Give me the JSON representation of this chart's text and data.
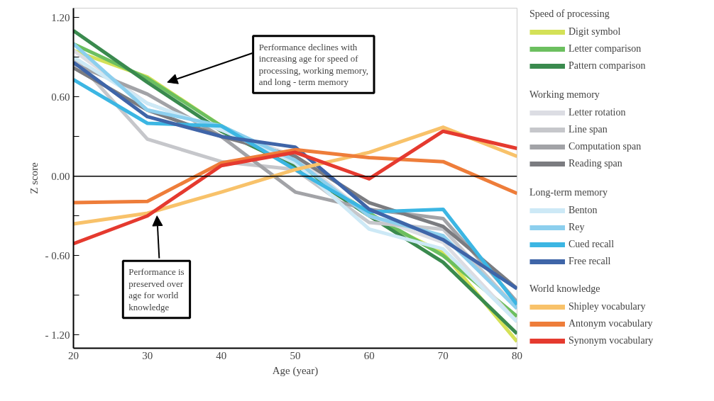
{
  "chart_data": {
    "type": "line",
    "xlabel": "Age (year)",
    "ylabel": "Z score",
    "x": [
      20,
      30,
      40,
      50,
      60,
      70,
      80
    ],
    "xlim": [
      20,
      80
    ],
    "xticks": [
      20,
      30,
      40,
      50,
      60,
      70,
      80
    ],
    "ylim": [
      -1.3,
      1.27
    ],
    "yticks": [
      {
        "value": 1.2,
        "label": "1.20"
      },
      {
        "value": 0.9,
        "label": null
      },
      {
        "value": 0.6,
        "label": "0.60"
      },
      {
        "value": 0.3,
        "label": null
      },
      {
        "value": 0,
        "label": "0.00"
      },
      {
        "value": -0.3,
        "label": null
      },
      {
        "value": -0.6,
        "label": "- 0.60"
      },
      {
        "value": -0.9,
        "label": null
      },
      {
        "value": -1.2,
        "label": "- 1.20"
      }
    ],
    "ref_lines": [
      {
        "axis": "y",
        "value": 0,
        "label": null,
        "color": "#000000"
      }
    ],
    "grid": false,
    "legend": "right",
    "legend_title": [
      "Speed of processing",
      "Working memory",
      "Long-term memory",
      "World knowledge"
    ],
    "series": [
      {
        "name": "Digit symbol",
        "color": "#d4e157",
        "values": [
          0.95,
          0.75,
          0.38,
          0.1,
          -0.3,
          -0.58,
          -1.25
        ]
      },
      {
        "name": "Letter comparison",
        "color": "#6cbf5f",
        "values": [
          1.0,
          0.74,
          0.38,
          0.1,
          -0.28,
          -0.6,
          -1.06
        ]
      },
      {
        "name": "Pattern comparison",
        "color": "#3a8a4e",
        "values": [
          1.1,
          0.71,
          0.34,
          0.07,
          -0.3,
          -0.65,
          -1.19
        ]
      },
      {
        "name": "Letter rotation",
        "color": "#dcdde3",
        "values": [
          0.95,
          0.55,
          0.35,
          0.15,
          -0.3,
          -0.5,
          -1.1
        ]
      },
      {
        "name": "Line span",
        "color": "#c6c7cb",
        "values": [
          0.9,
          0.28,
          0.11,
          0.05,
          -0.35,
          -0.4,
          -1.0
        ]
      },
      {
        "name": "Computation span",
        "color": "#a2a3a7",
        "values": [
          0.85,
          0.62,
          0.3,
          -0.12,
          -0.25,
          -0.32,
          -0.95
        ]
      },
      {
        "name": "Reading span",
        "color": "#7b7c80",
        "values": [
          0.82,
          0.5,
          0.3,
          0.15,
          -0.2,
          -0.38,
          -0.85
        ]
      },
      {
        "name": "Benton",
        "color": "#cde9f6",
        "values": [
          0.9,
          0.55,
          0.35,
          0.1,
          -0.4,
          -0.55,
          -1.1
        ]
      },
      {
        "name": "Rey",
        "color": "#8ccfee",
        "values": [
          1.0,
          0.5,
          0.38,
          0.12,
          -0.3,
          -0.45,
          -1.0
        ]
      },
      {
        "name": "Cued recall",
        "color": "#3cb6e3",
        "values": [
          0.73,
          0.4,
          0.38,
          0.05,
          -0.27,
          -0.25,
          -0.97
        ]
      },
      {
        "name": "Free recall",
        "color": "#3f65a8",
        "values": [
          0.86,
          0.45,
          0.3,
          0.22,
          -0.25,
          -0.48,
          -0.85
        ]
      },
      {
        "name": "Shipley vocabulary",
        "color": "#f8c26a",
        "values": [
          -0.36,
          -0.28,
          -0.12,
          0.05,
          0.18,
          0.37,
          0.15
        ]
      },
      {
        "name": "Antonym vocabulary",
        "color": "#ee7d3a",
        "values": [
          -0.2,
          -0.19,
          0.1,
          0.2,
          0.14,
          0.11,
          -0.13
        ]
      },
      {
        "name": "Synonym vocabulary",
        "color": "#e53a2f",
        "values": [
          -0.51,
          -0.3,
          0.08,
          0.18,
          -0.02,
          0.34,
          0.21
        ]
      }
    ],
    "annotations": [
      "Performance declines with increasing age for speed of processing, working memory, and long - term memory",
      "Performance is preserved over age for world knowledge"
    ]
  }
}
